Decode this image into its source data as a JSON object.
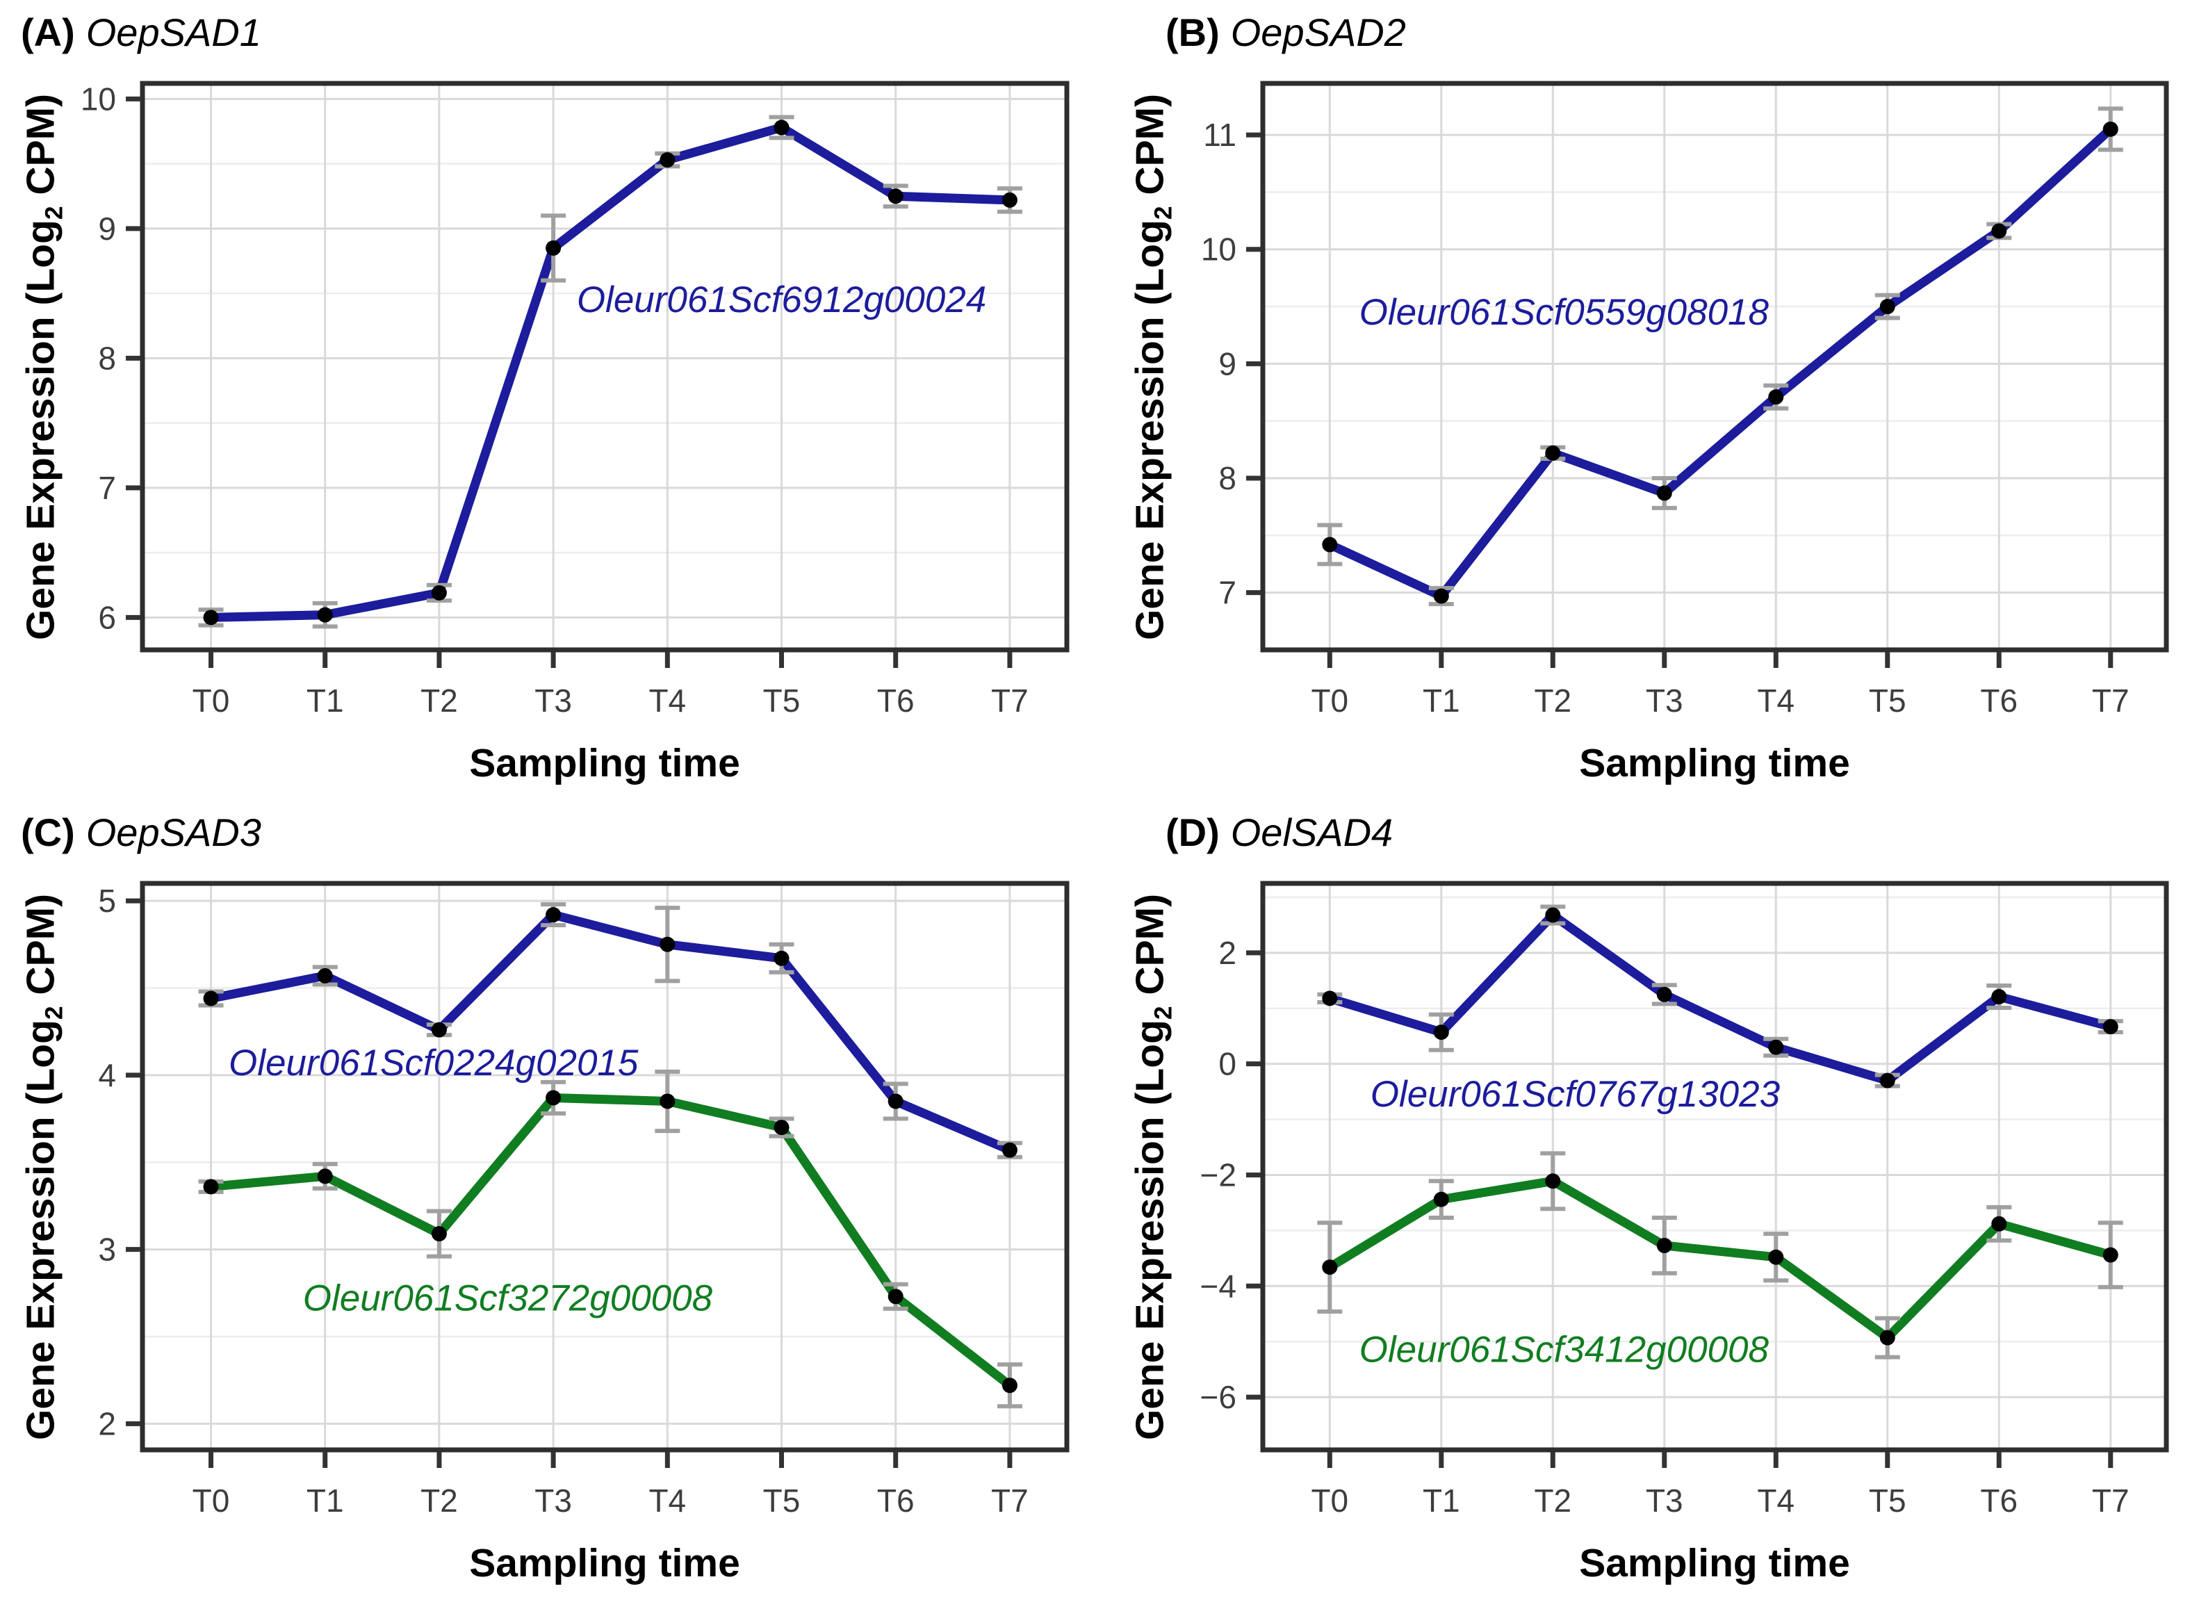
{
  "figure": {
    "shared": {
      "xlabel": "Sampling time",
      "ylabel_pre": "Gene Expression (Log",
      "ylabel_sub": "2",
      "ylabel_post": " CPM)"
    },
    "colors": {
      "blue": "#1c1c9c",
      "green": "#107d21",
      "point": "#000000",
      "error_bar": "#a0a0a0",
      "grid_major": "#d9d9d9",
      "grid_minor": "#ededed",
      "panel_border": "#2e2e2e",
      "tick_mark": "#333333",
      "tick_text": "#3d3d3d",
      "background": "#ffffff"
    }
  },
  "chart_data": [
    {
      "type": "line",
      "panel_label": "(A)",
      "title": "OepSAD1",
      "xlabel": "Sampling time",
      "ylabel": "Gene Expression (Log2 CPM)",
      "categories": [
        "T0",
        "T1",
        "T2",
        "T3",
        "T4",
        "T5",
        "T6",
        "T7"
      ],
      "yticks": [
        6,
        7,
        8,
        9,
        10
      ],
      "ylim": [
        5.75,
        10.12
      ],
      "grid": true,
      "legend_position": "none",
      "series": [
        {
          "name": "Oleur061Scf6912g00024",
          "color": "#1c1c9c",
          "values": [
            6.0,
            6.02,
            6.19,
            8.85,
            9.53,
            9.78,
            9.25,
            9.22
          ],
          "errors": [
            0.06,
            0.09,
            0.06,
            0.25,
            0.05,
            0.08,
            0.08,
            0.09
          ],
          "label_pos": {
            "x": 5.0,
            "y": 8.45
          }
        }
      ]
    },
    {
      "type": "line",
      "panel_label": "(B)",
      "title": "OepSAD2",
      "xlabel": "Sampling time",
      "ylabel": "Gene Expression (Log2 CPM)",
      "categories": [
        "T0",
        "T1",
        "T2",
        "T3",
        "T4",
        "T5",
        "T6",
        "T7"
      ],
      "yticks": [
        7,
        8,
        9,
        10,
        11
      ],
      "ylim": [
        6.5,
        11.45
      ],
      "grid": true,
      "legend_position": "none",
      "series": [
        {
          "name": "Oleur061Scf0559g08018",
          "color": "#1c1c9c",
          "values": [
            7.42,
            6.97,
            8.22,
            7.87,
            8.71,
            9.5,
            10.16,
            11.05
          ],
          "errors": [
            0.17,
            0.07,
            0.05,
            0.13,
            0.1,
            0.1,
            0.06,
            0.18
          ],
          "label_pos": {
            "x": 2.1,
            "y": 9.45
          }
        }
      ]
    },
    {
      "type": "line",
      "panel_label": "(C)",
      "title": "OepSAD3",
      "xlabel": "Sampling time",
      "ylabel": "Gene Expression (Log2 CPM)",
      "categories": [
        "T0",
        "T1",
        "T2",
        "T3",
        "T4",
        "T5",
        "T6",
        "T7"
      ],
      "yticks": [
        2,
        3,
        4,
        5
      ],
      "ylim": [
        1.85,
        5.1
      ],
      "grid": true,
      "legend_position": "none",
      "series": [
        {
          "name": "Oleur061Scf0224g02015",
          "color": "#1c1c9c",
          "values": [
            4.44,
            4.57,
            4.26,
            4.92,
            4.75,
            4.67,
            3.85,
            3.57
          ],
          "errors": [
            0.04,
            0.05,
            0.03,
            0.06,
            0.21,
            0.08,
            0.1,
            0.04
          ],
          "label_pos": {
            "x": 1.95,
            "y": 4.07
          }
        },
        {
          "name": "Oleur061Scf3272g00008",
          "color": "#107d21",
          "values": [
            3.36,
            3.42,
            3.09,
            3.87,
            3.85,
            3.7,
            2.73,
            2.22
          ],
          "errors": [
            0.03,
            0.07,
            0.13,
            0.09,
            0.17,
            0.05,
            0.07,
            0.12
          ],
          "label_pos": {
            "x": 2.6,
            "y": 2.72
          }
        }
      ]
    },
    {
      "type": "line",
      "panel_label": "(D)",
      "title": "OelSAD4",
      "xlabel": "Sampling time",
      "ylabel": "Gene Expression (Log2 CPM)",
      "categories": [
        "T0",
        "T1",
        "T2",
        "T3",
        "T4",
        "T5",
        "T6",
        "T7"
      ],
      "yticks": [
        -6,
        -4,
        -2,
        0,
        2
      ],
      "ylim": [
        -6.95,
        3.25
      ],
      "grid": true,
      "legend_position": "none",
      "series": [
        {
          "name": "Oleur061Scf0767g13023",
          "color": "#1c1c9c",
          "values": [
            1.18,
            0.57,
            2.68,
            1.25,
            0.3,
            -0.3,
            1.21,
            0.67
          ],
          "errors": [
            0.07,
            0.32,
            0.15,
            0.17,
            0.15,
            0.1,
            0.2,
            0.1
          ],
          "label_pos": {
            "x": 2.2,
            "y": -0.55
          }
        },
        {
          "name": "Oleur061Scf3412g00008",
          "color": "#107d21",
          "values": [
            -3.66,
            -2.44,
            -2.11,
            -3.27,
            -3.48,
            -4.93,
            -2.88,
            -3.44
          ],
          "errors": [
            0.8,
            0.33,
            0.5,
            0.5,
            0.42,
            0.35,
            0.3,
            0.58
          ],
          "label_pos": {
            "x": 2.1,
            "y": -5.15
          }
        }
      ]
    }
  ]
}
